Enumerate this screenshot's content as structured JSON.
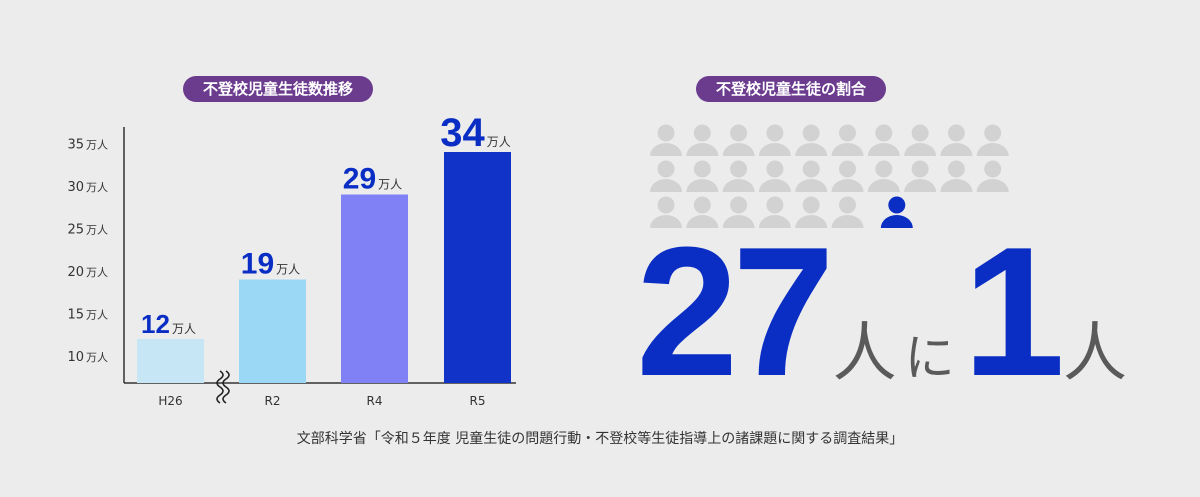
{
  "left_chart": {
    "title": "不登校児童生徒数推移",
    "unit": "万人",
    "y_ticks": [
      10,
      15,
      20,
      25,
      30,
      35
    ],
    "y_tick_unit": "万人",
    "axis_break": true,
    "colors": {
      "title_bg": "#6b3b8e",
      "axis": "#333333",
      "value_label": "#0a2ec4"
    }
  },
  "right_panel": {
    "title": "不登校児童生徒の割合",
    "icon_rows": [
      10,
      10,
      7
    ],
    "icon_color_default": "#d2d2d2",
    "icon_color_highlight": "#0a2ec4",
    "highlight_index": 26,
    "ratio": {
      "left_number": "27",
      "left_unit": "人",
      "particle": "に",
      "right_number": "1",
      "right_unit": "人"
    }
  },
  "source": "文部科学省「令和５年度 児童生徒の問題行動・不登校等生徒指導上の諸課題に関する調査結果」",
  "chart_data": {
    "type": "bar",
    "title": "不登校児童生徒数推移",
    "categories": [
      "H26",
      "R2",
      "R4",
      "R5"
    ],
    "values": [
      12,
      19,
      29,
      34
    ],
    "value_unit": "万人",
    "ylim": [
      8,
      37
    ],
    "bar_colors": [
      "#c6e6f6",
      "#9ad8f5",
      "#8081f5",
      "#1133c7"
    ]
  }
}
